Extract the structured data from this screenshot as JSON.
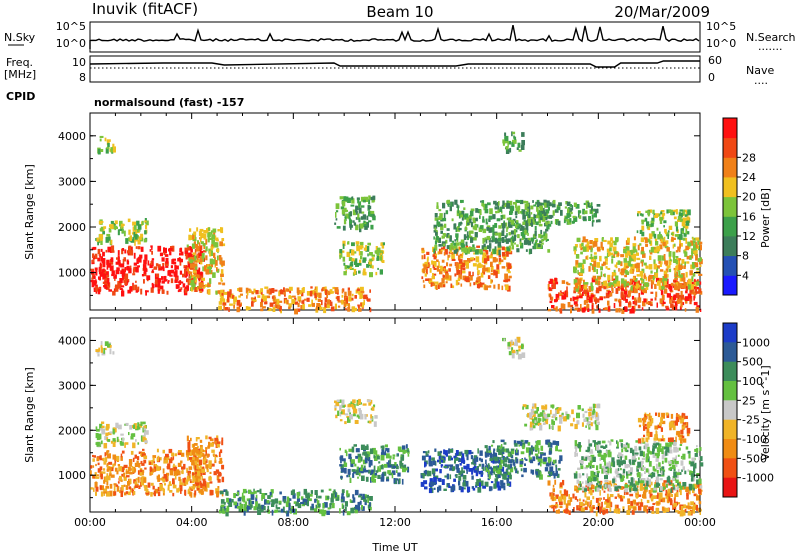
{
  "header": {
    "station": "Inuvik (fitACF)",
    "beam": "Beam 10",
    "date": "20/Mar/2009"
  },
  "top_panels": {
    "nsky": {
      "label": "N.Sky",
      "ticks": [
        "10^5",
        "10^0"
      ],
      "right_ticks": [
        "10^5",
        "10^0"
      ],
      "right_label": "N.Search",
      "right_marker": "......."
    },
    "freq": {
      "label_line1": "Freq.",
      "label_line2": "[MHz]",
      "ticks": [
        "10",
        "8"
      ],
      "right_ticks": [
        "60",
        "0"
      ],
      "right_label": "Nave",
      "right_marker": "....",
      "steps": [
        [
          0.0,
          9.6
        ],
        [
          0.12,
          9.7
        ],
        [
          0.2,
          9.7
        ],
        [
          0.22,
          9.5
        ],
        [
          0.4,
          9.7
        ],
        [
          0.41,
          9.4
        ],
        [
          0.6,
          9.4
        ],
        [
          0.62,
          9.6
        ],
        [
          0.82,
          9.6
        ],
        [
          0.83,
          9.3
        ],
        [
          0.86,
          9.3
        ],
        [
          0.87,
          9.7
        ],
        [
          0.93,
          9.7
        ],
        [
          0.94,
          9.9
        ],
        [
          1.0,
          9.9
        ]
      ]
    },
    "cpid": {
      "label": "CPID",
      "text": "normalsound (fast) -157"
    }
  },
  "chart_data": [
    {
      "type": "heatmap",
      "title": "Power",
      "xlabel": "",
      "ylabel": "Slant Range [km]",
      "xlim": [
        "00:00",
        "24:00"
      ],
      "ylim": [
        180,
        4500
      ],
      "y_ticks": [
        "1000",
        "2000",
        "3000",
        "4000"
      ],
      "x_ticks": [
        "00:00",
        "04:00",
        "08:00",
        "12:00",
        "16:00",
        "20:00",
        "00:00"
      ],
      "colorbar": {
        "label": "Power [dB]",
        "ticks": [
          "4",
          "8",
          "12",
          "16",
          "20",
          "24",
          "28"
        ],
        "colors": [
          "#1a1aff",
          "#2450b4",
          "#3c7d5a",
          "#3ca04a",
          "#7cc43a",
          "#f0c020",
          "#f08018",
          "#f04814",
          "#ff1010"
        ]
      },
      "echo_regions": [
        {
          "t0": 0.0,
          "t1": 4.5,
          "r0": 600,
          "r1": 1600,
          "level": 8
        },
        {
          "t0": 0.2,
          "t1": 2.2,
          "r0": 1700,
          "r1": 2200,
          "level": 4
        },
        {
          "t0": 0.2,
          "t1": 0.9,
          "r0": 3700,
          "r1": 4000,
          "level": 4
        },
        {
          "t0": 3.8,
          "t1": 5.2,
          "r0": 600,
          "r1": 2000,
          "level": 5
        },
        {
          "t0": 5.0,
          "t1": 11.0,
          "r0": 200,
          "r1": 700,
          "level": 6
        },
        {
          "t0": 9.6,
          "t1": 11.2,
          "r0": 2000,
          "r1": 2700,
          "level": 3
        },
        {
          "t0": 9.8,
          "t1": 11.5,
          "r0": 1000,
          "r1": 1700,
          "level": 4
        },
        {
          "t0": 13.0,
          "t1": 16.5,
          "r0": 700,
          "r1": 1600,
          "level": 6
        },
        {
          "t0": 13.5,
          "t1": 18.0,
          "r0": 1500,
          "r1": 2600,
          "level": 3
        },
        {
          "t0": 16.2,
          "t1": 17.0,
          "r0": 3700,
          "r1": 4100,
          "level": 3
        },
        {
          "t0": 17.0,
          "t1": 20.0,
          "r0": 2100,
          "r1": 2600,
          "level": 3
        },
        {
          "t0": 18.0,
          "t1": 24.0,
          "r0": 200,
          "r1": 900,
          "level": 7
        },
        {
          "t0": 19.0,
          "t1": 24.0,
          "r0": 700,
          "r1": 1800,
          "level": 5
        },
        {
          "t0": 21.5,
          "t1": 23.5,
          "r0": 1800,
          "r1": 2400,
          "level": 4
        }
      ]
    },
    {
      "type": "heatmap",
      "title": "Velocity",
      "xlabel": "Time UT",
      "ylabel": "Slant Range [km]",
      "xlim": [
        "00:00",
        "24:00"
      ],
      "ylim": [
        180,
        4500
      ],
      "y_ticks": [
        "1000",
        "2000",
        "3000",
        "4000"
      ],
      "x_ticks": [
        "00:00",
        "04:00",
        "08:00",
        "12:00",
        "16:00",
        "20:00",
        "00:00"
      ],
      "colorbar": {
        "label": "Velocity [m s^-1]",
        "ticks": [
          "1000",
          "500",
          "100",
          "25",
          "-25",
          "-100",
          "-500",
          "-1000"
        ],
        "colors": [
          "#1c3cc8",
          "#2c5a96",
          "#3c8c5a",
          "#64c040",
          "#c8c8c8",
          "#f0b428",
          "#f08c14",
          "#f05014",
          "#e81414"
        ]
      },
      "echo_regions": [
        {
          "t0": 0.0,
          "t1": 4.5,
          "r0": 600,
          "r1": 1600,
          "level": 6
        },
        {
          "t0": 0.2,
          "t1": 2.2,
          "r0": 1700,
          "r1": 2200,
          "level": 4
        },
        {
          "t0": 0.2,
          "t1": 0.9,
          "r0": 3700,
          "r1": 4000,
          "level": 4
        },
        {
          "t0": 3.8,
          "t1": 5.2,
          "r0": 600,
          "r1": 1900,
          "level": 6
        },
        {
          "t0": 5.0,
          "t1": 11.0,
          "r0": 200,
          "r1": 700,
          "level": 2
        },
        {
          "t0": 9.6,
          "t1": 11.2,
          "r0": 2200,
          "r1": 2700,
          "level": 4
        },
        {
          "t0": 9.8,
          "t1": 12.5,
          "r0": 900,
          "r1": 1700,
          "level": 2
        },
        {
          "t0": 13.0,
          "t1": 16.5,
          "r0": 700,
          "r1": 1600,
          "level": 1
        },
        {
          "t0": 15.5,
          "t1": 18.5,
          "r0": 1000,
          "r1": 1800,
          "level": 2
        },
        {
          "t0": 16.2,
          "t1": 17.0,
          "r0": 3700,
          "r1": 4100,
          "level": 4
        },
        {
          "t0": 17.0,
          "t1": 20.0,
          "r0": 2100,
          "r1": 2600,
          "level": 4
        },
        {
          "t0": 18.0,
          "t1": 24.0,
          "r0": 200,
          "r1": 900,
          "level": 6
        },
        {
          "t0": 19.0,
          "t1": 24.0,
          "r0": 700,
          "r1": 1800,
          "level": 3
        },
        {
          "t0": 21.5,
          "t1": 23.5,
          "r0": 1800,
          "r1": 2400,
          "level": 6
        }
      ]
    }
  ]
}
